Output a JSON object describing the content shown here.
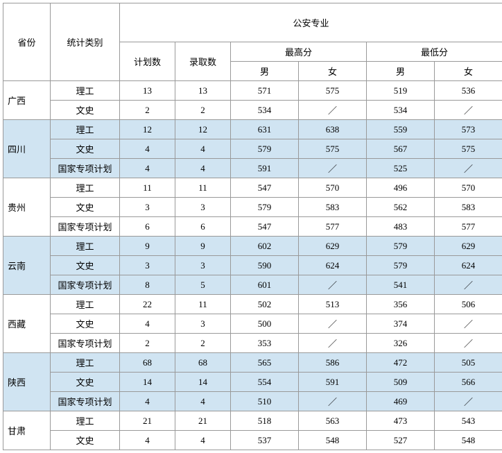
{
  "headers": {
    "province": "省份",
    "category": "统计类别",
    "major": "公安专业",
    "plan": "计划数",
    "admit": "录取数",
    "max": "最高分",
    "min": "最低分",
    "male": "男",
    "female": "女"
  },
  "provinces": [
    {
      "name": "广西",
      "shade": false,
      "rows": [
        {
          "cat": "理工",
          "plan": "13",
          "admit": "13",
          "max_m": "571",
          "max_f": "575",
          "min_m": "519",
          "min_f": "536"
        },
        {
          "cat": "文史",
          "plan": "2",
          "admit": "2",
          "max_m": "534",
          "max_f": "／",
          "min_m": "534",
          "min_f": "／"
        }
      ]
    },
    {
      "name": "四川",
      "shade": true,
      "rows": [
        {
          "cat": "理工",
          "plan": "12",
          "admit": "12",
          "max_m": "631",
          "max_f": "638",
          "min_m": "559",
          "min_f": "573"
        },
        {
          "cat": "文史",
          "plan": "4",
          "admit": "4",
          "max_m": "579",
          "max_f": "575",
          "min_m": "567",
          "min_f": "575"
        },
        {
          "cat": "国家专项计划",
          "plan": "4",
          "admit": "4",
          "max_m": "591",
          "max_f": "／",
          "min_m": "525",
          "min_f": "／"
        }
      ]
    },
    {
      "name": "贵州",
      "shade": false,
      "rows": [
        {
          "cat": "理工",
          "plan": "11",
          "admit": "11",
          "max_m": "547",
          "max_f": "570",
          "min_m": "496",
          "min_f": "570"
        },
        {
          "cat": "文史",
          "plan": "3",
          "admit": "3",
          "max_m": "579",
          "max_f": "583",
          "min_m": "562",
          "min_f": "583"
        },
        {
          "cat": "国家专项计划",
          "plan": "6",
          "admit": "6",
          "max_m": "547",
          "max_f": "577",
          "min_m": "483",
          "min_f": "577"
        }
      ]
    },
    {
      "name": "云南",
      "shade": true,
      "rows": [
        {
          "cat": "理工",
          "plan": "9",
          "admit": "9",
          "max_m": "602",
          "max_f": "629",
          "min_m": "579",
          "min_f": "629"
        },
        {
          "cat": "文史",
          "plan": "3",
          "admit": "3",
          "max_m": "590",
          "max_f": "624",
          "min_m": "579",
          "min_f": "624"
        },
        {
          "cat": "国家专项计划",
          "plan": "8",
          "admit": "5",
          "max_m": "601",
          "max_f": "／",
          "min_m": "541",
          "min_f": "／"
        }
      ]
    },
    {
      "name": "西藏",
      "shade": false,
      "rows": [
        {
          "cat": "理工",
          "plan": "22",
          "admit": "11",
          "max_m": "502",
          "max_f": "513",
          "min_m": "356",
          "min_f": "506"
        },
        {
          "cat": "文史",
          "plan": "4",
          "admit": "3",
          "max_m": "500",
          "max_f": "／",
          "min_m": "374",
          "min_f": "／"
        },
        {
          "cat": "国家专项计划",
          "plan": "2",
          "admit": "2",
          "max_m": "353",
          "max_f": "／",
          "min_m": "326",
          "min_f": "／"
        }
      ]
    },
    {
      "name": "陕西",
      "shade": true,
      "rows": [
        {
          "cat": "理工",
          "plan": "68",
          "admit": "68",
          "max_m": "565",
          "max_f": "586",
          "min_m": "472",
          "min_f": "505"
        },
        {
          "cat": "文史",
          "plan": "14",
          "admit": "14",
          "max_m": "554",
          "max_f": "591",
          "min_m": "509",
          "min_f": "566"
        },
        {
          "cat": "国家专项计划",
          "plan": "4",
          "admit": "4",
          "max_m": "510",
          "max_f": "／",
          "min_m": "469",
          "min_f": "／"
        }
      ]
    },
    {
      "name": "甘肃",
      "shade": false,
      "rows": [
        {
          "cat": "理工",
          "plan": "21",
          "admit": "21",
          "max_m": "518",
          "max_f": "563",
          "min_m": "473",
          "min_f": "543"
        },
        {
          "cat": "文史",
          "plan": "4",
          "admit": "4",
          "max_m": "537",
          "max_f": "548",
          "min_m": "527",
          "min_f": "548"
        }
      ]
    }
  ]
}
